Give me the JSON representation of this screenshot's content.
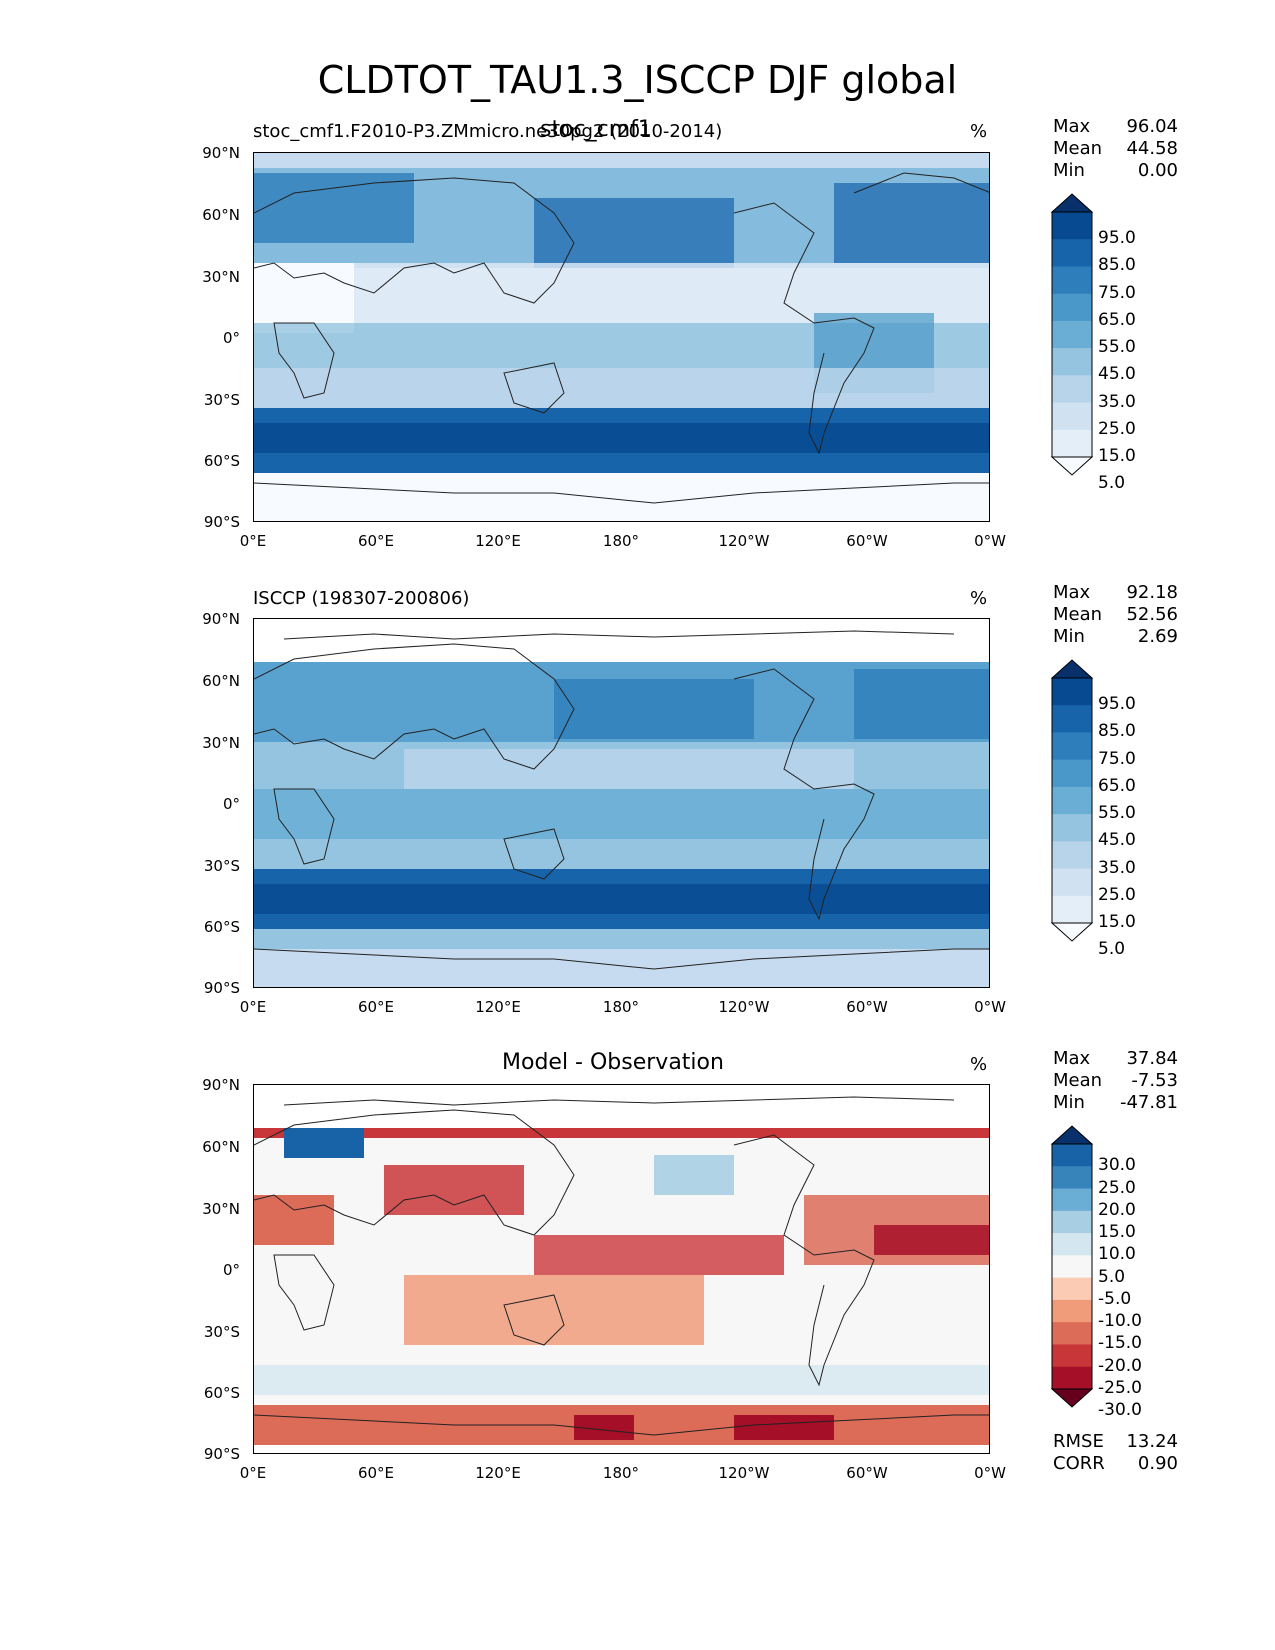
{
  "figure_title": "CLDTOT_TAU1.3_ISCCP DJF global",
  "panels": [
    {
      "title_left": "stoc_cmf1.F2010-P3.ZMmicro.ne30pg2 (2010-2014)",
      "title_center": "stoc_cmf1",
      "units": "%",
      "stats": {
        "max_label": "Max",
        "max": "96.04",
        "mean_label": "Mean",
        "mean": "44.58",
        "min_label": "Min",
        "min": "0.00"
      },
      "colorbar_ticks": [
        "95.0",
        "85.0",
        "75.0",
        "65.0",
        "55.0",
        "45.0",
        "35.0",
        "25.0",
        "15.0",
        "5.0"
      ],
      "colormap": [
        "#f7fbff",
        "#e3eef8",
        "#d0e1f2",
        "#b7d4ea",
        "#94c4df",
        "#6aaed6",
        "#4a98c9",
        "#2e7ebc",
        "#1764ab",
        "#084a91",
        "#08306b"
      ]
    },
    {
      "title_left": "ISCCP (198307-200806)",
      "title_center": "",
      "units": "%",
      "stats": {
        "max_label": "Max",
        "max": "92.18",
        "mean_label": "Mean",
        "mean": "52.56",
        "min_label": "Min",
        "min": "2.69"
      },
      "colorbar_ticks": [
        "95.0",
        "85.0",
        "75.0",
        "65.0",
        "55.0",
        "45.0",
        "35.0",
        "25.0",
        "15.0",
        "5.0"
      ],
      "colormap": [
        "#f7fbff",
        "#e3eef8",
        "#d0e1f2",
        "#b7d4ea",
        "#94c4df",
        "#6aaed6",
        "#4a98c9",
        "#2e7ebc",
        "#1764ab",
        "#084a91",
        "#08306b"
      ]
    },
    {
      "title_left": "",
      "title_center": "Model - Observation",
      "units": "%",
      "stats": {
        "max_label": "Max",
        "max": "37.84",
        "mean_label": "Mean",
        "mean": "-7.53",
        "min_label": "Min",
        "min": "-47.81"
      },
      "colorbar_ticks": [
        "30.0",
        "25.0",
        "20.0",
        "15.0",
        "10.0",
        "5.0",
        "-5.0",
        "-10.0",
        "-15.0",
        "-20.0",
        "-25.0",
        "-30.0"
      ],
      "colormap": [
        "#67001f",
        "#a50f27",
        "#c9363a",
        "#dc6b58",
        "#f09c7b",
        "#fbcbb3",
        "#f7f7f7",
        "#d4e6f0",
        "#a7cee3",
        "#6aaed6",
        "#3784bb",
        "#1863a8",
        "#08306b"
      ],
      "extra_stats": {
        "rmse_label": "RMSE",
        "rmse": "13.24",
        "corr_label": "CORR",
        "corr": "0.90"
      }
    }
  ],
  "axes": {
    "y_ticks": [
      "90°N",
      "60°N",
      "30°N",
      "0°",
      "30°S",
      "60°S",
      "90°S"
    ],
    "x_ticks": [
      "0°E",
      "60°E",
      "120°E",
      "180°",
      "120°W",
      "60°W",
      "0°W"
    ]
  }
}
